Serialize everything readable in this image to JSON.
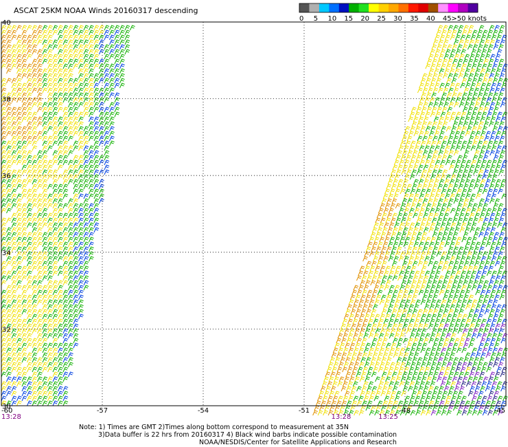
{
  "title": "ASCAT 25KM NOAA Winds 20160317 descending",
  "legend": {
    "colors": [
      "#555555",
      "#b0b0b0",
      "#00c8ff",
      "#0070ff",
      "#0010c0",
      "#00b000",
      "#20e020",
      "#ffff00",
      "#ffd000",
      "#ffa800",
      "#ff7000",
      "#ff1800",
      "#e00000",
      "#a05000",
      "#ff90ff",
      "#ff00ff",
      "#b000c0",
      "#5000a0"
    ],
    "labels": [
      "0",
      "5",
      "10",
      "15",
      "20",
      "25",
      "30",
      "35",
      "40",
      "45",
      ">50 knots"
    ]
  },
  "map": {
    "lon_labels": [
      "-60",
      "-57",
      "-54",
      "-51",
      "-48",
      "-45"
    ],
    "lat_labels": [
      "40",
      "38",
      "36",
      "34",
      "32",
      "30"
    ],
    "times": [
      {
        "text": "13:28",
        "lon": -60
      },
      {
        "text": "13:28",
        "lon": -49.9
      },
      {
        "text": "13:25",
        "lon": -48.5
      }
    ]
  },
  "notes": {
    "line1": "Note: 1) Times are GMT 2)Times along bottom correspond to measurement at 35N",
    "line2": "3)Data buffer is 22 hrs from 20160317 4) Black wind barbs indicate possible contamination",
    "line3": "NOAA/NESDIS/Center for Satellite Applications and Research"
  }
}
